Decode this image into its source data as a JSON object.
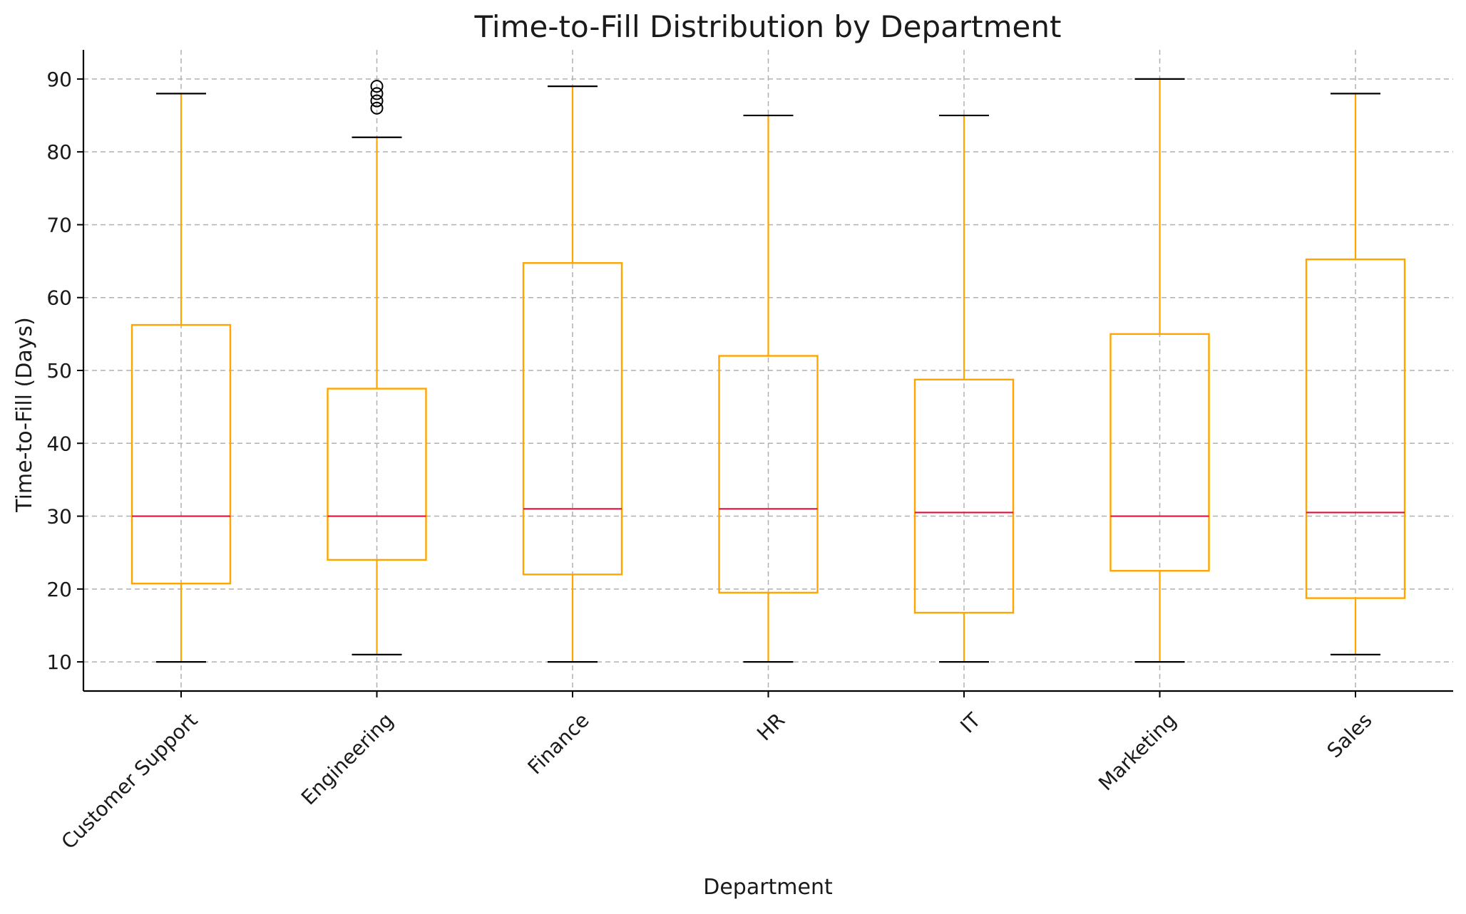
{
  "chart_data": {
    "type": "box",
    "title": "Time-to-Fill Distribution by Department",
    "xlabel": "Department",
    "ylabel": "Time-to-Fill (Days)",
    "ylim": [
      6,
      94
    ],
    "yticks": [
      10,
      20,
      30,
      40,
      50,
      60,
      70,
      80,
      90
    ],
    "grid": true,
    "colors": {
      "box": "#ffa500",
      "median": "#dc143c",
      "caps": "#000000",
      "outliers": "#000000",
      "grid": "#b0b0b0"
    },
    "categories": [
      "Customer Support",
      "Engineering",
      "Finance",
      "HR",
      "IT",
      "Marketing",
      "Sales"
    ],
    "boxes": [
      {
        "category": "Customer Support",
        "whisker_low": 10,
        "q1": 20.75,
        "median": 30,
        "q3": 56.25,
        "whisker_high": 88,
        "outliers": []
      },
      {
        "category": "Engineering",
        "whisker_low": 11,
        "q1": 24,
        "median": 30,
        "q3": 47.5,
        "whisker_high": 82,
        "outliers": [
          86,
          87,
          88,
          89
        ]
      },
      {
        "category": "Finance",
        "whisker_low": 10,
        "q1": 22,
        "median": 31,
        "q3": 64.75,
        "whisker_high": 89,
        "outliers": []
      },
      {
        "category": "HR",
        "whisker_low": 10,
        "q1": 19.5,
        "median": 31,
        "q3": 52,
        "whisker_high": 85,
        "outliers": []
      },
      {
        "category": "IT",
        "whisker_low": 10,
        "q1": 16.75,
        "median": 30.5,
        "q3": 48.75,
        "whisker_high": 85,
        "outliers": []
      },
      {
        "category": "Marketing",
        "whisker_low": 10,
        "q1": 22.5,
        "median": 30,
        "q3": 55,
        "whisker_high": 90,
        "outliers": []
      },
      {
        "category": "Sales",
        "whisker_low": 11,
        "q1": 18.75,
        "median": 30.5,
        "q3": 65.25,
        "whisker_high": 88,
        "outliers": []
      }
    ]
  }
}
